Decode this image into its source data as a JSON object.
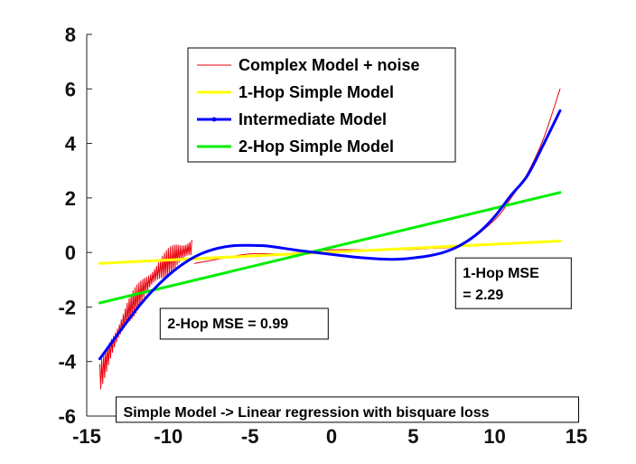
{
  "chart_data": {
    "type": "line",
    "title": "",
    "xlabel": "",
    "ylabel": "",
    "xlim": [
      -15,
      15
    ],
    "ylim": [
      -6,
      8
    ],
    "xticks": [
      -15,
      -10,
      -5,
      0,
      5,
      10,
      15
    ],
    "yticks": [
      -6,
      -4,
      -2,
      0,
      2,
      4,
      6,
      8
    ],
    "xtick_labels": [
      "-15",
      "-10",
      "-5",
      "0",
      "5",
      "10",
      "15"
    ],
    "ytick_labels": [
      "-6",
      "-4",
      "-2",
      "0",
      "2",
      "4",
      "6",
      "8"
    ],
    "grid": false,
    "legend_position": "top-center",
    "series": [
      {
        "name": "Complex Model + noise",
        "color": "#e8000b",
        "style": "thin noisy line",
        "x": [
          -14.2,
          -13.5,
          -12.5,
          -11.5,
          -10.5,
          -9.5,
          -8.5,
          -8.4,
          -7,
          -5,
          -3,
          -1,
          0,
          2,
          4,
          6,
          8,
          10,
          11,
          12,
          13,
          14
        ],
        "y": [
          -4.6,
          -3.5,
          -2.2,
          -1.3,
          -0.6,
          -0.1,
          0.2,
          -0.4,
          -0.25,
          -0.05,
          -0.05,
          0.05,
          0.1,
          0.1,
          0.1,
          0.15,
          0.3,
          1.2,
          2.0,
          2.9,
          4.2,
          6.0
        ]
      },
      {
        "name": "1-Hop Simple Model",
        "color": "#ffff00",
        "x": [
          -14.2,
          14
        ],
        "y": [
          -0.4,
          0.42
        ]
      },
      {
        "name": "Intermediate Model",
        "color": "#0000ff",
        "x": [
          -14.2,
          -13,
          -12,
          -11,
          -10,
          -9,
          -8,
          -7,
          -6,
          -5,
          -4,
          -3,
          -2,
          -1,
          0,
          1,
          2,
          3,
          4,
          5,
          6,
          7,
          8,
          9,
          10,
          11,
          12,
          13,
          14
        ],
        "y": [
          -3.9,
          -2.92,
          -2.12,
          -1.42,
          -0.84,
          -0.38,
          -0.05,
          0.15,
          0.25,
          0.26,
          0.24,
          0.16,
          0.07,
          0,
          -0.07,
          -0.14,
          -0.2,
          -0.24,
          -0.25,
          -0.2,
          -0.12,
          0.03,
          0.3,
          0.72,
          1.32,
          2.1,
          2.82,
          3.98,
          5.2
        ]
      },
      {
        "name": "2-Hop Simple Model",
        "color": "#00ee00",
        "x": [
          -14.2,
          14
        ],
        "y": [
          -1.85,
          2.2
        ]
      }
    ],
    "annotations": [
      {
        "text": "2-Hop MSE = 0.99",
        "x": -10.5,
        "y": -2.05
      },
      {
        "text": "1-Hop MSE\n= 2.29",
        "x": 7.6,
        "y": -0.2
      },
      {
        "text": "Simple Model -> Linear regression with bisquare loss",
        "x": -13.2,
        "y": -5.3
      }
    ]
  }
}
